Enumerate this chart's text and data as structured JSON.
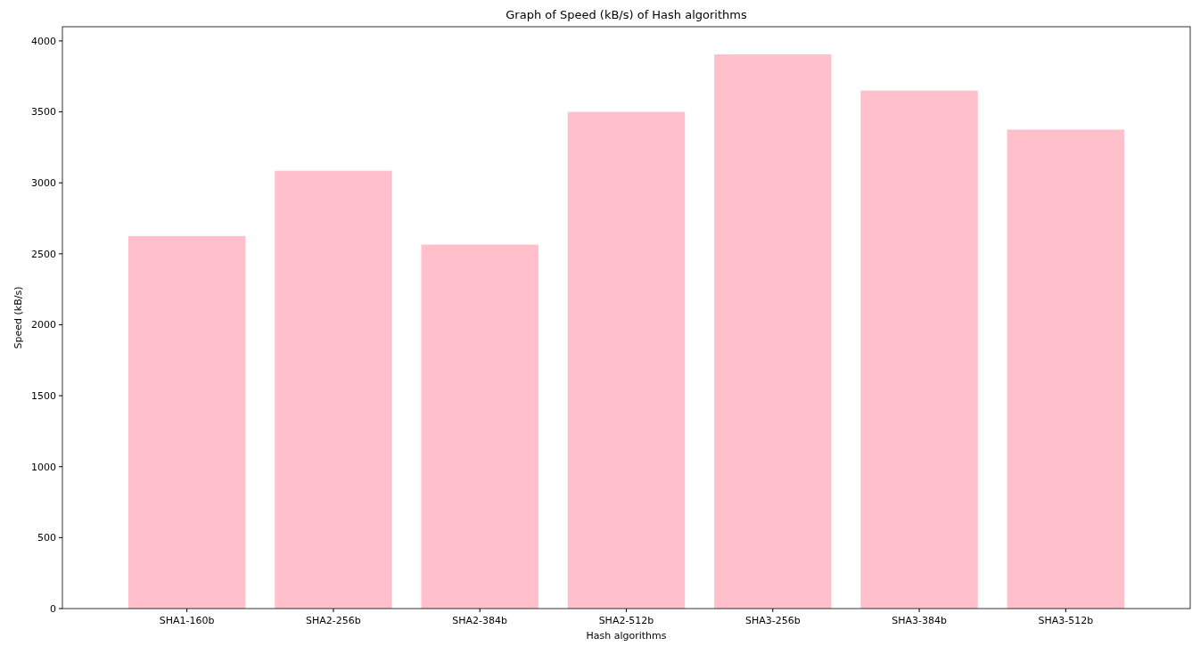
{
  "chart_data": {
    "type": "bar",
    "title": "Graph of Speed (kB/s) of Hash algorithms",
    "xlabel": "Hash algorithms",
    "ylabel": "Speed (kB/s)",
    "categories": [
      "SHA1-160b",
      "SHA2-256b",
      "SHA2-384b",
      "SHA2-512b",
      "SHA3-256b",
      "SHA3-384b",
      "SHA3-512b"
    ],
    "values": [
      2625,
      3085,
      2565,
      3500,
      3905,
      3650,
      3375
    ],
    "color": "#ffc0cb",
    "ylim": [
      0,
      4100
    ],
    "yticks": [
      0,
      500,
      1000,
      1500,
      2000,
      2500,
      3000,
      3500,
      4000
    ],
    "grid": false
  }
}
